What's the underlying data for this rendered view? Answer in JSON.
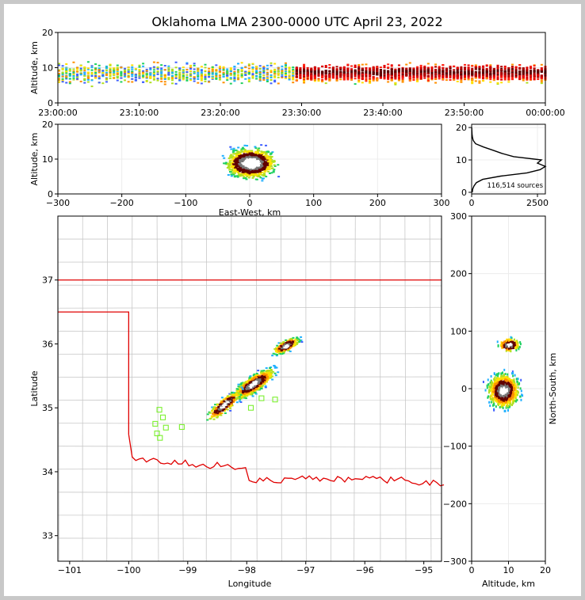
{
  "title": "Oklahoma LMA 2300-0000 UTC April 23, 2022",
  "colors": {
    "background": "#c8c8c8",
    "state_border": "#e00000",
    "county_lines": "#c8c8c8",
    "stations": "#7cf030",
    "profile_line": "#000000"
  },
  "chart_data": [
    {
      "id": "time-height",
      "type": "heatmap",
      "xlabel": "",
      "ylabel": "Altitude, km",
      "x_tick_labels": [
        "23:00:00",
        "23:10:00",
        "23:20:00",
        "23:30:00",
        "23:40:00",
        "23:50:00",
        "00:00:00"
      ],
      "ylim": [
        0,
        20
      ],
      "y_ticks": [
        0,
        10,
        20
      ],
      "note_values": {
        "band_altitude_km": [
          3,
          15
        ],
        "peak_activity_start": "23:29:00",
        "peak_altitude_km": 9
      }
    },
    {
      "id": "east-west-altitude",
      "type": "heatmap",
      "xlabel": "East-West, km",
      "ylabel": "Altitude, km",
      "xlim": [
        -300,
        300
      ],
      "x_ticks": [
        -300,
        -200,
        -100,
        0,
        100,
        200,
        300
      ],
      "ylim": [
        0,
        20
      ],
      "y_ticks": [
        0,
        10,
        20
      ]
    },
    {
      "id": "altitude-histogram",
      "type": "line",
      "xlim": [
        0,
        2800
      ],
      "x_ticks": [
        0,
        2500
      ],
      "ylim": [
        -0.5,
        21
      ],
      "y_ticks": [
        0,
        10,
        20
      ],
      "annotation": "116,514 sources",
      "profile": {
        "altitude_km": [
          0,
          1,
          2,
          3,
          4,
          5,
          6,
          7,
          8,
          9,
          10,
          11,
          12,
          13,
          14,
          15,
          16,
          17,
          18,
          19,
          20
        ],
        "count": [
          20,
          40,
          90,
          180,
          420,
          1100,
          2100,
          2600,
          2800,
          2500,
          2650,
          1600,
          1150,
          800,
          450,
          150,
          60,
          30,
          15,
          8,
          4
        ]
      }
    },
    {
      "id": "plan-view",
      "type": "scatter",
      "xlabel": "Longitude",
      "ylabel": "Latitude",
      "xlim": [
        -101.2,
        -94.7
      ],
      "x_ticks": [
        -101,
        -100,
        -99,
        -98,
        -97,
        -96,
        -95
      ],
      "ylim": [
        32.6,
        38.0
      ],
      "y_ticks": [
        33,
        34,
        35,
        36,
        37
      ],
      "stations": [
        {
          "lon": -99.55,
          "lat": 34.75
        },
        {
          "lon": -99.48,
          "lat": 34.97
        },
        {
          "lon": -99.42,
          "lat": 34.85
        },
        {
          "lon": -99.37,
          "lat": 34.69
        },
        {
          "lon": -99.52,
          "lat": 34.6
        },
        {
          "lon": -99.47,
          "lat": 34.53
        },
        {
          "lon": -99.1,
          "lat": 34.7
        },
        {
          "lon": -97.93,
          "lat": 35.0
        },
        {
          "lon": -97.75,
          "lat": 35.15
        },
        {
          "lon": -97.52,
          "lat": 35.13
        }
      ]
    },
    {
      "id": "altitude-north-south",
      "type": "heatmap",
      "xlabel": "Altitude, km",
      "ylabel": "North-South, km",
      "xlim": [
        0,
        20
      ],
      "x_ticks": [
        0,
        10,
        20
      ],
      "ylim": [
        -300,
        300
      ],
      "y_ticks": [
        -300,
        -200,
        -100,
        0,
        100,
        200,
        300
      ]
    }
  ]
}
